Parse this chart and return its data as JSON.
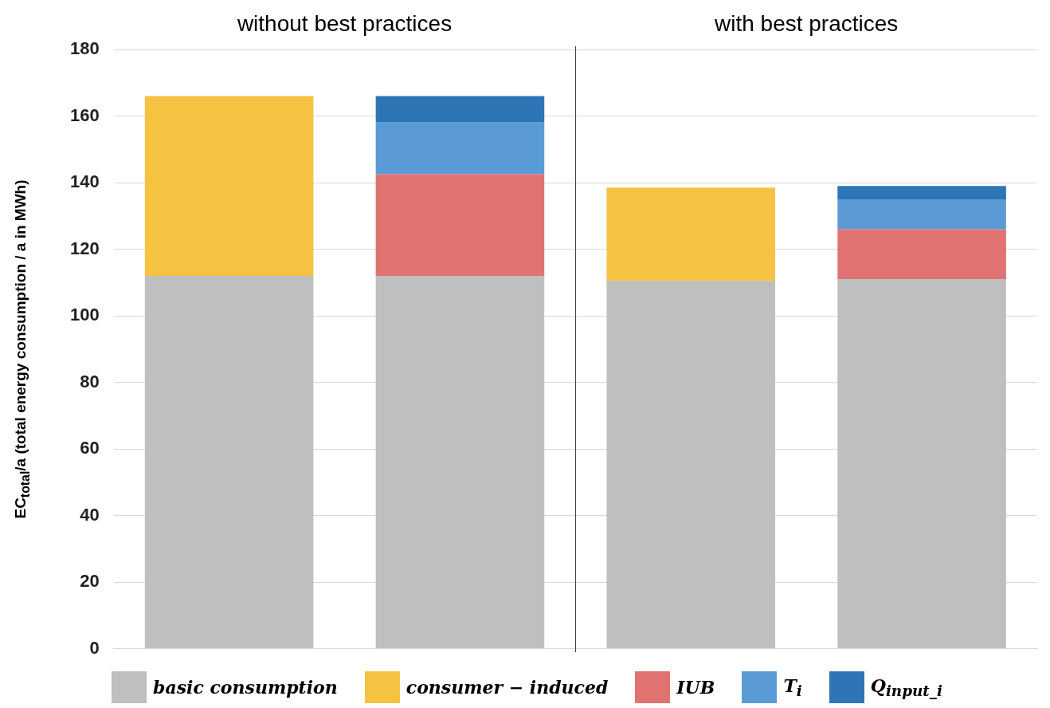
{
  "chart_data": {
    "type": "bar",
    "stacked": true,
    "categories": [
      null,
      null,
      null,
      null
    ],
    "ylabel": "EC$_{total}$/a (total energy consumption / a in MWh)",
    "annotations": [
      "without best practices",
      "with best practices"
    ],
    "ylim": [
      0,
      180
    ],
    "yticks": [
      0,
      20,
      40,
      60,
      80,
      100,
      120,
      140,
      160,
      180
    ],
    "grid": "y",
    "legend": "bottom",
    "series": [
      {
        "name": "basic consumption",
        "color": "#bfbfbf",
        "values": [
          112,
          112,
          110.5,
          111
        ]
      },
      {
        "name": "consumer − induced",
        "color": "#f5c242",
        "values": [
          54,
          null,
          28,
          null
        ]
      },
      {
        "name": "IUB",
        "color": "#e07272",
        "values": [
          null,
          30.5,
          null,
          15
        ]
      },
      {
        "name": "T$_{i}$",
        "color": "#5b9bd5",
        "values": [
          null,
          15.5,
          null,
          9
        ]
      },
      {
        "name": "Q$_{input_i}$",
        "color": "#2e75b6",
        "values": [
          null,
          8,
          null,
          4
        ]
      }
    ]
  }
}
